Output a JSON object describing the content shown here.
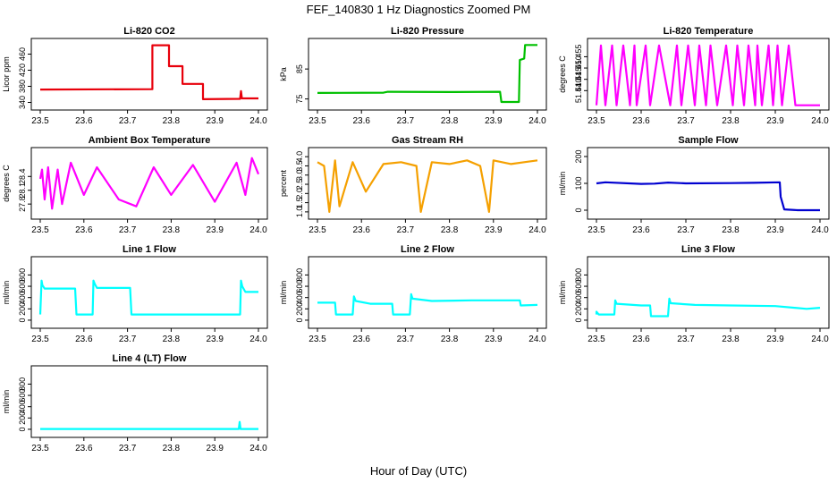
{
  "figure": {
    "title": "FEF_140830  1 Hz Diagnostics Zoomed PM",
    "xlabel": "Hour of Day (UTC)"
  },
  "chart_data": [
    {
      "type": "line",
      "title": "Li-820 CO2",
      "ylabel": "Licor ppm",
      "color": "#e8000b",
      "xlim": [
        23.5,
        24.0
      ],
      "xticks": [
        23.5,
        23.6,
        23.7,
        23.8,
        23.9,
        24.0
      ],
      "ylim": [
        330,
        490
      ],
      "yticks": [
        340,
        380,
        420,
        460
      ],
      "x": [
        23.5,
        23.757,
        23.757,
        23.795,
        23.795,
        23.826,
        23.826,
        23.873,
        23.873,
        23.958,
        23.96,
        23.962,
        23.965,
        24.0
      ],
      "y": [
        372,
        373,
        482,
        482,
        430,
        430,
        386,
        386,
        348,
        349,
        368,
        350,
        350,
        350
      ]
    },
    {
      "type": "line",
      "title": "Li-820 Pressure",
      "ylabel": "kPa",
      "color": "#00c000",
      "xlim": [
        23.5,
        24.0
      ],
      "xticks": [
        23.5,
        23.6,
        23.7,
        23.8,
        23.9,
        24.0
      ],
      "ylim": [
        72.5,
        94
      ],
      "yticks": [
        75,
        85
      ],
      "x": [
        23.5,
        23.65,
        23.66,
        23.8,
        23.915,
        23.918,
        23.958,
        23.96,
        23.97,
        23.972,
        24.0
      ],
      "y": [
        77.0,
        77.1,
        77.4,
        77.3,
        77.4,
        74.0,
        74.0,
        88,
        88.5,
        93.0,
        93.0
      ]
    },
    {
      "type": "line",
      "title": "Li-820 Temperature",
      "ylabel": "degrees C",
      "color": "#ff00ff",
      "xlim": [
        23.5,
        24.0
      ],
      "xticks": [
        23.5,
        23.6,
        23.7,
        23.8,
        23.9,
        24.0
      ],
      "ylim": [
        51.433,
        51.4615
      ],
      "yticks": [
        51.44,
        51.445,
        51.45,
        51.455
      ],
      "x": [
        23.5,
        23.51,
        23.52,
        23.535,
        23.545,
        23.56,
        23.575,
        23.585,
        23.59,
        23.61,
        23.62,
        23.64,
        23.665,
        23.68,
        23.69,
        23.705,
        23.72,
        23.73,
        23.745,
        23.755,
        23.77,
        23.79,
        23.805,
        23.815,
        23.83,
        23.84,
        23.855,
        23.86,
        23.87,
        23.885,
        23.895,
        23.905,
        23.915,
        23.93,
        23.945,
        24.0
      ],
      "y": [
        51.4335,
        51.46,
        51.4335,
        51.46,
        51.4335,
        51.46,
        51.4335,
        51.46,
        51.4335,
        51.46,
        51.4335,
        51.46,
        51.4335,
        51.46,
        51.4335,
        51.46,
        51.4335,
        51.46,
        51.4335,
        51.46,
        51.4335,
        51.46,
        51.4335,
        51.46,
        51.4335,
        51.46,
        51.4335,
        51.46,
        51.4335,
        51.46,
        51.4335,
        51.46,
        51.4335,
        51.46,
        51.4335,
        51.4335
      ]
    },
    {
      "type": "line",
      "title": "Ambient Box Temperature",
      "ylabel": "degrees C",
      "color": "#ff00ff",
      "xlim": [
        23.5,
        24.0
      ],
      "xticks": [
        23.5,
        23.6,
        23.7,
        23.8,
        23.9,
        24.0
      ],
      "ylim": [
        27.55,
        28.95
      ],
      "yticks": [
        27.8,
        28.1,
        28.4
      ],
      "x": [
        23.5,
        23.504,
        23.51,
        23.518,
        23.527,
        23.54,
        23.55,
        23.57,
        23.6,
        23.63,
        23.68,
        23.72,
        23.76,
        23.8,
        23.85,
        23.9,
        23.95,
        23.97,
        23.985,
        24.0
      ],
      "y": [
        28.35,
        28.55,
        27.9,
        28.6,
        27.7,
        28.55,
        27.8,
        28.7,
        28.0,
        28.6,
        27.9,
        27.75,
        28.6,
        28.0,
        28.65,
        27.85,
        28.7,
        28.0,
        28.8,
        28.45
      ]
    },
    {
      "type": "line",
      "title": "Gas Stream RH",
      "ylabel": "percent",
      "color": "#f5a000",
      "xlim": [
        23.5,
        24.0
      ],
      "xticks": [
        23.5,
        23.6,
        23.7,
        23.8,
        23.9,
        24.0
      ],
      "ylim": [
        0.8,
        4.3
      ],
      "yticks": [
        1.0,
        1.5,
        2.0,
        2.5,
        3.0,
        3.5,
        4.0
      ],
      "x": [
        23.5,
        23.515,
        23.527,
        23.54,
        23.55,
        23.58,
        23.61,
        23.65,
        23.69,
        23.725,
        23.735,
        23.76,
        23.8,
        23.84,
        23.87,
        23.89,
        23.9,
        23.94,
        23.97,
        24.0
      ],
      "y": [
        3.7,
        3.5,
        1.0,
        3.8,
        1.3,
        3.7,
        2.1,
        3.6,
        3.7,
        3.5,
        1.0,
        3.7,
        3.6,
        3.8,
        3.5,
        1.0,
        3.8,
        3.6,
        3.7,
        3.8
      ]
    },
    {
      "type": "line",
      "title": "Sample Flow",
      "ylabel": "ml/min",
      "color": "#0000d0",
      "xlim": [
        23.5,
        24.0
      ],
      "xticks": [
        23.5,
        23.6,
        23.7,
        23.8,
        23.9,
        24.0
      ],
      "ylim": [
        -20,
        220
      ],
      "yticks": [
        0,
        100,
        200
      ],
      "x": [
        23.5,
        23.52,
        23.6,
        23.63,
        23.66,
        23.7,
        23.8,
        23.85,
        23.91,
        23.912,
        23.92,
        23.95,
        24.0
      ],
      "y": [
        100,
        104,
        98,
        99,
        103,
        100,
        101,
        102,
        104,
        50,
        3,
        0,
        0
      ]
    },
    {
      "type": "line",
      "title": "Line 1 Flow",
      "ylabel": "ml/min",
      "color": "#00ffff",
      "xlim": [
        23.5,
        24.0
      ],
      "xticks": [
        23.5,
        23.6,
        23.7,
        23.8,
        23.9,
        24.0
      ],
      "ylim": [
        -80,
        1060
      ],
      "yticks": [
        0,
        200,
        400,
        600,
        800
      ],
      "x": [
        23.5,
        23.503,
        23.505,
        23.51,
        23.58,
        23.583,
        23.62,
        23.622,
        23.625,
        23.63,
        23.706,
        23.709,
        23.958,
        23.96,
        23.963,
        23.97,
        24.0
      ],
      "y": [
        100,
        700,
        620,
        560,
        560,
        100,
        100,
        700,
        640,
        570,
        570,
        100,
        100,
        700,
        600,
        500,
        500
      ]
    },
    {
      "type": "line",
      "title": "Line 2 Flow",
      "ylabel": "ml/min",
      "color": "#00ffff",
      "xlim": [
        23.5,
        24.0
      ],
      "xticks": [
        23.5,
        23.6,
        23.7,
        23.8,
        23.9,
        24.0
      ],
      "ylim": [
        -80,
        1060
      ],
      "yticks": [
        0,
        200,
        400,
        600,
        800
      ],
      "x": [
        23.5,
        23.54,
        23.542,
        23.58,
        23.583,
        23.587,
        23.62,
        23.67,
        23.672,
        23.71,
        23.713,
        23.716,
        23.76,
        23.85,
        23.96,
        23.962,
        24.0
      ],
      "y": [
        310,
        310,
        100,
        100,
        420,
        340,
        290,
        290,
        100,
        100,
        460,
        380,
        340,
        350,
        350,
        260,
        270
      ]
    },
    {
      "type": "line",
      "title": "Line 3 Flow",
      "ylabel": "ml/min",
      "color": "#00ffff",
      "xlim": [
        23.5,
        24.0
      ],
      "xticks": [
        23.5,
        23.6,
        23.7,
        23.8,
        23.9,
        24.0
      ],
      "ylim": [
        -80,
        1060
      ],
      "yticks": [
        0,
        200,
        400,
        600,
        800
      ],
      "x": [
        23.5,
        23.5,
        23.505,
        23.54,
        23.542,
        23.545,
        23.6,
        23.62,
        23.622,
        23.66,
        23.663,
        23.666,
        23.72,
        23.8,
        23.9,
        23.97,
        24.0
      ],
      "y": [
        100,
        150,
        100,
        100,
        350,
        290,
        260,
        260,
        70,
        70,
        380,
        300,
        270,
        260,
        250,
        200,
        220
      ]
    },
    {
      "type": "line",
      "title": "Line 4 (LT) Flow",
      "ylabel": "ml/min",
      "color": "#00ffff",
      "xlim": [
        23.5,
        24.0
      ],
      "xticks": [
        23.5,
        23.6,
        23.7,
        23.8,
        23.9,
        24.0
      ],
      "ylim": [
        -80,
        1060
      ],
      "yticks": [
        0,
        200,
        400,
        600,
        800
      ],
      "x": [
        23.5,
        23.955,
        23.957,
        23.959,
        23.962,
        24.0
      ],
      "y": [
        5,
        5,
        130,
        5,
        5,
        5
      ]
    }
  ]
}
